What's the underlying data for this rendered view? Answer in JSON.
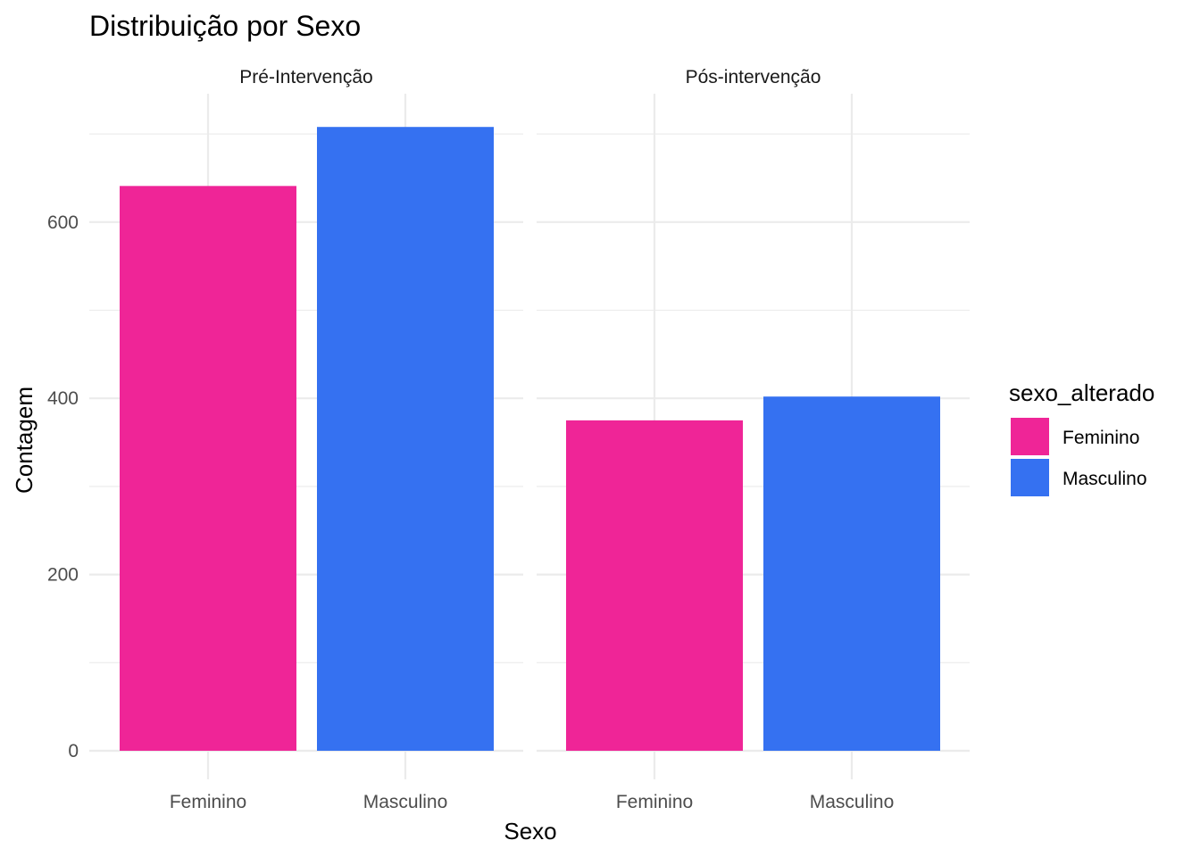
{
  "chart_data": {
    "type": "bar",
    "title": "Distribuição por Sexo",
    "xlabel": "Sexo",
    "ylabel": "Contagem",
    "ylim": [
      0,
      710
    ],
    "yticks": [
      0,
      200,
      400,
      600
    ],
    "categories": [
      "Feminino",
      "Masculino"
    ],
    "panels": [
      {
        "label": "Pré-Intervenção",
        "values": [
          641,
          708
        ]
      },
      {
        "label": "Pós-intervenção",
        "values": [
          375,
          402
        ]
      }
    ],
    "legend": {
      "title": "sexo_alterado",
      "position": "right",
      "items": [
        {
          "label": "Feminino",
          "color": "#EF2597"
        },
        {
          "label": "Masculino",
          "color": "#3571F1"
        }
      ]
    },
    "grid": true
  }
}
